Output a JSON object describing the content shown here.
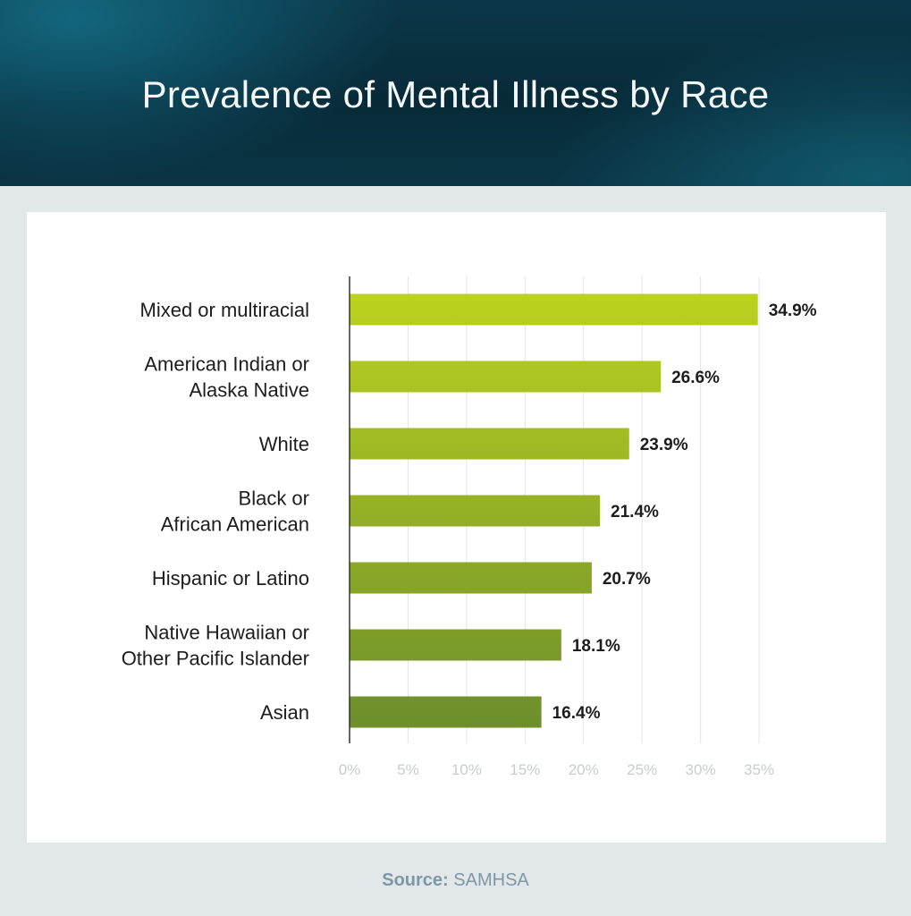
{
  "title": "Prevalence of Mental Illness by Race",
  "source": {
    "label": "Source:",
    "value": "SAMHSA"
  },
  "colors": {
    "bar_top": "#bcd21f",
    "bar_bottom": "#6c8e2c",
    "grid": "#e4e4e4",
    "axis": "#333333",
    "tick_label": "#c9cccd",
    "category_label": "#1d1d1d",
    "value_label": "#1d1d1d"
  },
  "chart_data": {
    "type": "bar",
    "orientation": "horizontal",
    "categories": [
      [
        "Mixed or multiracial"
      ],
      [
        "American Indian or",
        "Alaska Native"
      ],
      [
        "White"
      ],
      [
        "Black or",
        "African American"
      ],
      [
        "Hispanic or Latino"
      ],
      [
        "Native Hawaiian or",
        "Other Pacific Islander"
      ],
      [
        "Asian"
      ]
    ],
    "values": [
      34.9,
      26.6,
      23.9,
      21.4,
      20.7,
      18.1,
      16.4
    ],
    "value_labels": [
      "34.9%",
      "26.6%",
      "23.9%",
      "21.4%",
      "20.7%",
      "18.1%",
      "16.4%"
    ],
    "xlim": [
      0,
      35
    ],
    "xticks": [
      0,
      5,
      10,
      15,
      20,
      25,
      30,
      35
    ],
    "xtick_labels": [
      "0%",
      "5%",
      "10%",
      "15%",
      "20%",
      "25%",
      "30%",
      "35%"
    ],
    "grid": true,
    "legend": false
  }
}
